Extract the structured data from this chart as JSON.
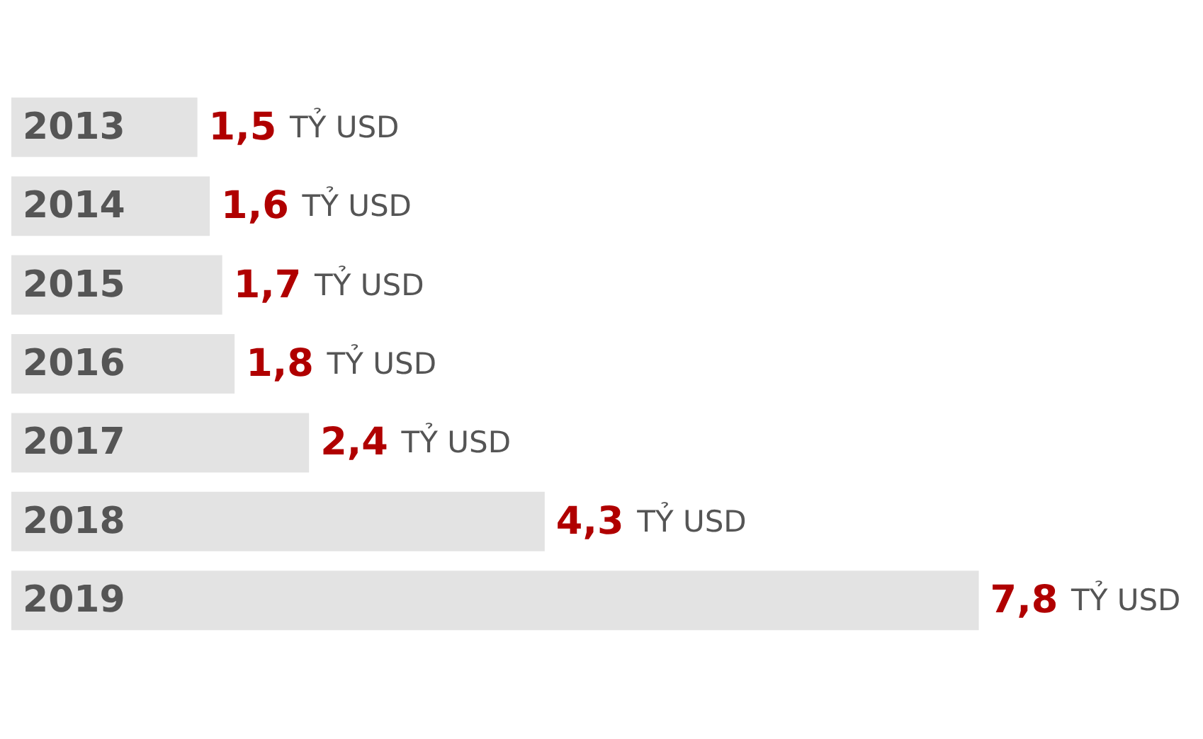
{
  "chart_data": {
    "type": "bar",
    "orientation": "horizontal",
    "categories": [
      "2013",
      "2014",
      "2015",
      "2016",
      "2017",
      "2018",
      "2019"
    ],
    "values": [
      1.5,
      1.6,
      1.7,
      1.8,
      2.4,
      4.3,
      7.8
    ],
    "color": "#e3e3e3",
    "value_labels": [
      "1,5 TỶ USD",
      "1,6 TỶ USD",
      "1,7 TỶ USD",
      "1,8 TỶ USD",
      "2,4 TỶ USD",
      "4,3 TỶ USD",
      "7,8 TỶ USD"
    ],
    "grid": false
  }
}
